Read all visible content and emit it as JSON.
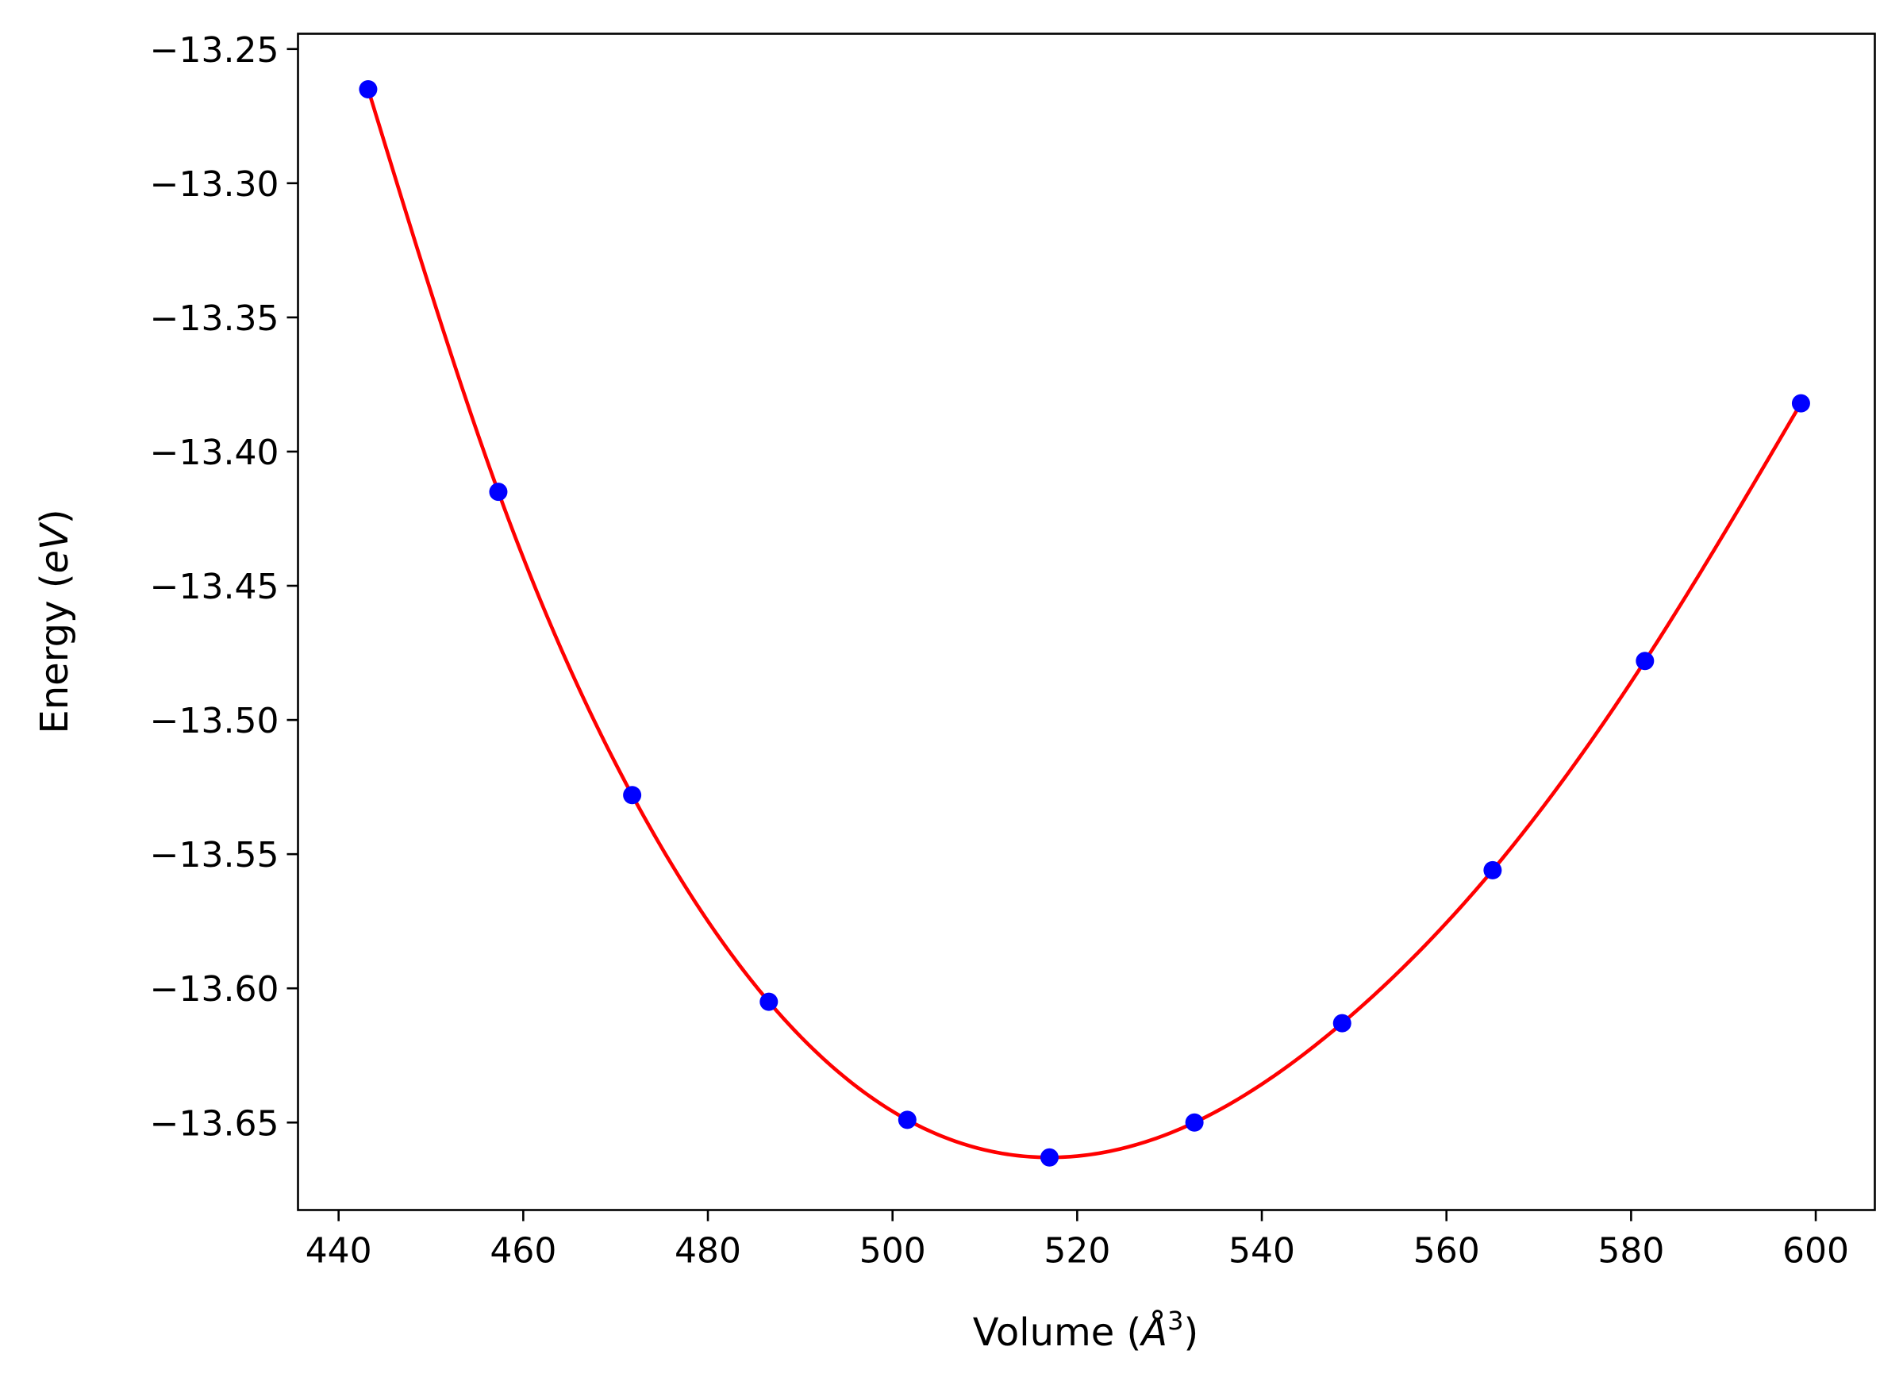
{
  "chart_data": {
    "type": "scatter",
    "title": "",
    "xlabel": "Volume (",
    "xlabel_symbol": "Å",
    "xlabel_exp": "3",
    "xlabel_close": ")",
    "ylabel": "Energy (",
    "ylabel_unit": "eV",
    "ylabel_close": ")",
    "xlim": [
      435.6,
      606.4
    ],
    "ylim": [
      -13.6826,
      -13.2443
    ],
    "xticks": [
      440,
      460,
      480,
      500,
      520,
      540,
      560,
      580,
      600
    ],
    "xtick_labels": [
      "440",
      "460",
      "480",
      "500",
      "520",
      "540",
      "560",
      "580",
      "600"
    ],
    "yticks": [
      -13.25,
      -13.3,
      -13.35,
      -13.4,
      -13.45,
      -13.5,
      -13.55,
      -13.6,
      -13.65
    ],
    "ytick_labels": [
      "−13.25",
      "−13.30",
      "−13.35",
      "−13.40",
      "−13.45",
      "−13.50",
      "−13.55",
      "−13.60",
      "−13.65"
    ],
    "grid": false,
    "series": [
      {
        "name": "data",
        "kind": "points",
        "color": "#0000ff",
        "x": [
          443.2,
          457.3,
          471.8,
          486.6,
          501.6,
          517.0,
          532.7,
          548.7,
          565.0,
          581.5,
          598.4
        ],
        "y": [
          -13.265,
          -13.415,
          -13.528,
          -13.605,
          -13.649,
          -13.663,
          -13.65,
          -13.613,
          -13.556,
          -13.478,
          -13.382
        ]
      },
      {
        "name": "fit",
        "kind": "line",
        "color": "#ff0000"
      }
    ]
  }
}
